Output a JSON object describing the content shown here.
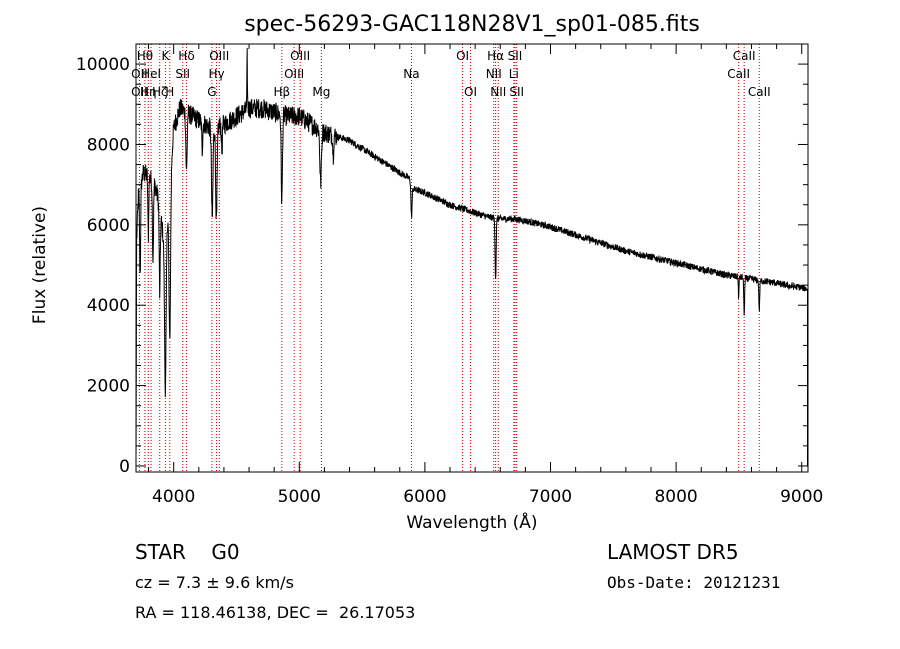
{
  "chart_data": {
    "type": "line",
    "title": "spec-56293-GAC118N28V1_sp01-085.fits",
    "xlabel": "Wavelength (Å)",
    "ylabel": "Flux (relative)",
    "xlim": [
      3700,
      9050
    ],
    "ylim": [
      -150,
      10500
    ],
    "xticks": [
      4000,
      5000,
      6000,
      7000,
      8000,
      9000
    ],
    "yticks": [
      0,
      2000,
      4000,
      6000,
      8000,
      10000
    ],
    "continuum": {
      "x": [
        3700,
        3720,
        3760,
        3800,
        3850,
        3880,
        3930,
        3960,
        4000,
        4050,
        4100,
        4200,
        4300,
        4400,
        4500,
        4600,
        4700,
        4800,
        4900,
        5000,
        5100,
        5200,
        5300,
        5400,
        5500,
        5600,
        5700,
        5800,
        5880,
        5900,
        6000,
        6100,
        6200,
        6300,
        6400,
        6500,
        6600,
        6700,
        6800,
        7000,
        7200,
        7400,
        7600,
        7800,
        8000,
        8200,
        8400,
        8500,
        8600,
        8700,
        8800,
        8900,
        9000,
        9050
      ],
      "y": [
        5200,
        6800,
        7300,
        7200,
        7000,
        6600,
        5400,
        6600,
        8400,
        8900,
        8800,
        8600,
        8400,
        8500,
        8700,
        8900,
        8900,
        8800,
        8700,
        8700,
        8500,
        8300,
        8200,
        8100,
        7900,
        7700,
        7500,
        7300,
        7150,
        6900,
        6800,
        6650,
        6500,
        6400,
        6300,
        6200,
        6150,
        6150,
        6100,
        5950,
        5750,
        5550,
        5350,
        5200,
        5050,
        4900,
        4750,
        4700,
        4650,
        4600,
        4550,
        4480,
        4440,
        4400
      ]
    },
    "absorption_lines": [
      {
        "center": 3733,
        "depth": 2200,
        "width": 6
      },
      {
        "center": 3798,
        "depth": 1500,
        "width": 5
      },
      {
        "center": 3835,
        "depth": 1900,
        "width": 6
      },
      {
        "center": 3889,
        "depth": 2100,
        "width": 6
      },
      {
        "center": 3934,
        "depth": 3600,
        "width": 9
      },
      {
        "center": 3969,
        "depth": 3900,
        "width": 9
      },
      {
        "center": 4102,
        "depth": 1500,
        "width": 7
      },
      {
        "center": 4227,
        "depth": 700,
        "width": 5
      },
      {
        "center": 4307,
        "depth": 2300,
        "width": 8
      },
      {
        "center": 4340,
        "depth": 2400,
        "width": 8
      },
      {
        "center": 4384,
        "depth": 700,
        "width": 5
      },
      {
        "center": 4861,
        "depth": 2200,
        "width": 7
      },
      {
        "center": 5170,
        "depth": 1300,
        "width": 9
      },
      {
        "center": 5270,
        "depth": 500,
        "width": 5
      },
      {
        "center": 5893,
        "depth": 800,
        "width": 6
      },
      {
        "center": 6563,
        "depth": 1500,
        "width": 6
      },
      {
        "center": 8498,
        "depth": 500,
        "width": 4
      },
      {
        "center": 8542,
        "depth": 900,
        "width": 5
      },
      {
        "center": 8662,
        "depth": 750,
        "width": 5
      }
    ],
    "emission_spikes": [
      {
        "center": 4585,
        "height": 1300,
        "width": 3
      }
    ],
    "noise_amp": 140,
    "edge_drop": {
      "x": 3702,
      "y": 2500
    },
    "spectral_lines": [
      {
        "wave": 3727,
        "label": "OII",
        "row": 1
      },
      {
        "wave": 3727,
        "label": "OII",
        "row": 2
      },
      {
        "wave": 3771,
        "label": "Hθ",
        "row": 0
      },
      {
        "wave": 3798,
        "label": "Hη",
        "row": 2
      },
      {
        "wave": 3820,
        "label": "HeI",
        "row": 1
      },
      {
        "wave": 3889,
        "label": "Hζ",
        "row": 2
      },
      {
        "wave": 3934,
        "label": "K",
        "row": 0
      },
      {
        "wave": 3969,
        "label": "H",
        "row": 2
      },
      {
        "wave": 4072,
        "label": "SII",
        "row": 1
      },
      {
        "wave": 4102,
        "label": "Hδ",
        "row": 0
      },
      {
        "wave": 4304,
        "label": "G",
        "row": 2
      },
      {
        "wave": 4341,
        "label": "Hγ",
        "row": 1
      },
      {
        "wave": 4363,
        "label": "OIII",
        "row": 0
      },
      {
        "wave": 4861,
        "label": "Hβ",
        "row": 2
      },
      {
        "wave": 4959,
        "label": "OIII",
        "row": 1
      },
      {
        "wave": 5007,
        "label": "OIII",
        "row": 0
      },
      {
        "wave": 5176,
        "label": "Mg",
        "row": 2
      },
      {
        "wave": 5893,
        "label": "Na",
        "row": 1
      },
      {
        "wave": 6300,
        "label": "OI",
        "row": 0
      },
      {
        "wave": 6363,
        "label": "OI",
        "row": 2
      },
      {
        "wave": 6548,
        "label": "NII",
        "row": 1
      },
      {
        "wave": 6563,
        "label": "Hα",
        "row": 0
      },
      {
        "wave": 6584,
        "label": "NII",
        "row": 2
      },
      {
        "wave": 6708,
        "label": "Li",
        "row": 1
      },
      {
        "wave": 6717,
        "label": "SII",
        "row": 0
      },
      {
        "wave": 6731,
        "label": "SII",
        "row": 2
      },
      {
        "wave": 8498,
        "label": "CaII",
        "row": 1
      },
      {
        "wave": 8542,
        "label": "CaII",
        "row": 0
      },
      {
        "wave": 8662,
        "label": "CaII",
        "row": 2
      }
    ]
  },
  "info": {
    "classification": "STAR    G0",
    "survey": "LAMOST DR5",
    "cz": "cz = 7.3 ± 9.6 km/s",
    "obs_date": "Obs-Date: 20121231",
    "coords": "RA = 118.46138, DEC =  26.17053"
  },
  "colors": {
    "line_marker": "#c00000",
    "spectrum": "#000000"
  }
}
